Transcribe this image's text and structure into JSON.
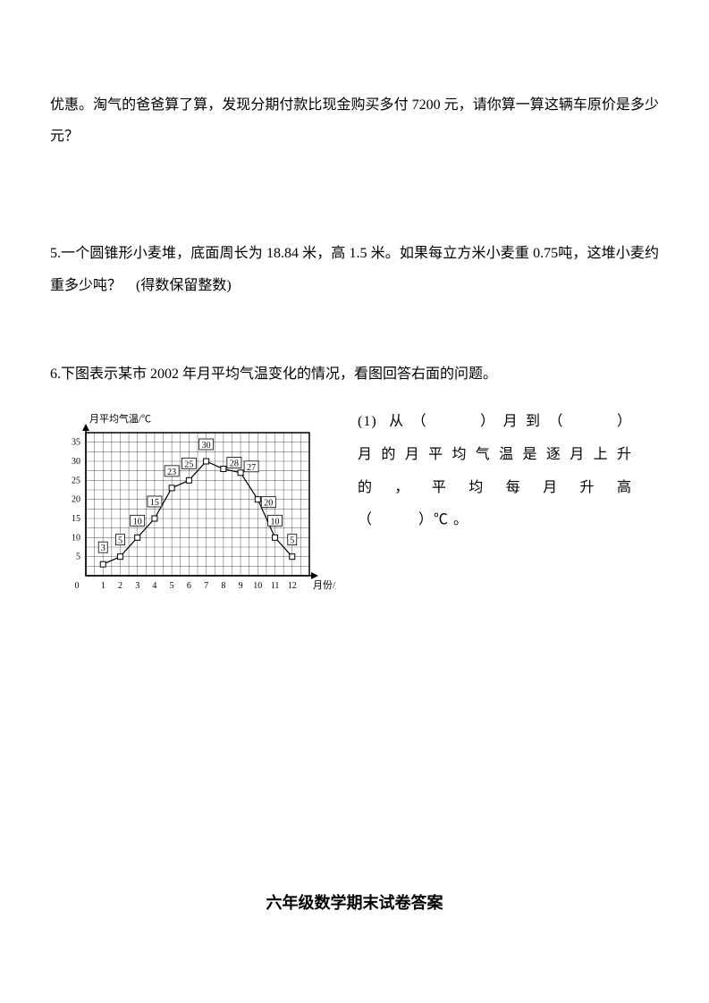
{
  "q4_tail": "优惠。淘气的爸爸算了算，发现分期付款比现金购买多付 7200 元，请你算一算这辆车原价是多少元？",
  "q5": "5.一个圆锥形小麦堆，底面周长为 18.84 米，高 1.5 米。如果每立方米小麦重 0.75吨，这堆小麦约重多少吨？　(得数保留整数)",
  "q6_intro": "6.下图表示某市 2002 年月平均气温变化的情况，看图回答右面的问题。",
  "q6_sub": {
    "l1": "(1) 从（　　）月到（　　）",
    "l2": "月的月平均气温是逐月上升",
    "l3": "的 ， 平 均 每 月 升 高",
    "l4": "（　　　）℃ 。"
  },
  "footer": "六年级数学期末试卷答案",
  "chart": {
    "type": "line",
    "y_axis_title": "月平均气温/℃",
    "x_axis_title": "月份/月",
    "background_color": "#ffffff",
    "axis_color": "#000000",
    "grid_color": "#000000",
    "line_color": "#000000",
    "marker_fill": "#ffffff",
    "marker_stroke": "#000000",
    "marker_size": 3,
    "line_width": 1.2,
    "grid_line_width": 0.6,
    "axis_line_width": 1.5,
    "axis_label_fontsize": 11,
    "tick_fontsize": 10,
    "value_label_fontsize": 10,
    "x_categories": [
      "1",
      "2",
      "3",
      "4",
      "5",
      "6",
      "7",
      "8",
      "9",
      "10",
      "11",
      "12"
    ],
    "x_values": [
      1,
      2,
      3,
      4,
      5,
      6,
      7,
      8,
      9,
      10,
      11,
      12
    ],
    "y_values": [
      3,
      5,
      10,
      15,
      23,
      25,
      30,
      28,
      27,
      20,
      10,
      5
    ],
    "value_labels": [
      "3",
      "5",
      "10",
      "15",
      "23",
      "25",
      "30",
      "28",
      "27",
      "20",
      "10",
      "5"
    ],
    "x_range": [
      0,
      13
    ],
    "y_range": [
      0,
      37.5
    ],
    "y_ticks": [
      5,
      10,
      15,
      20,
      25,
      30,
      35
    ],
    "x_grid_lines": 26,
    "y_grid_lines": 15
  }
}
